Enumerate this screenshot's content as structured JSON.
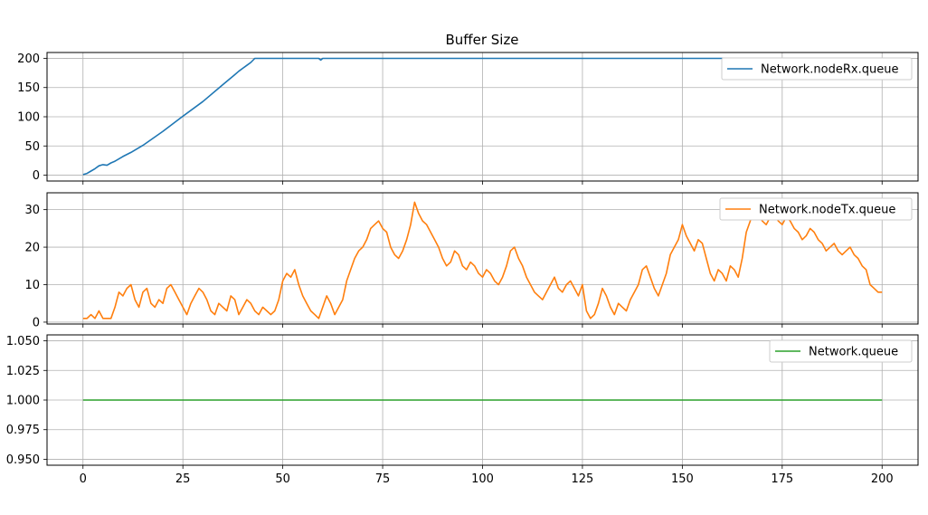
{
  "figure": {
    "title": "Buffer Size"
  },
  "chart_data": [
    {
      "type": "line",
      "title": "Buffer Size",
      "xlabel": "",
      "ylabel": "",
      "xlim": [
        -9,
        209
      ],
      "ylim": [
        -10,
        210
      ],
      "xticks": [
        0,
        25,
        50,
        75,
        100,
        125,
        150,
        175,
        200
      ],
      "xtick_labels_visible": false,
      "yticks": [
        0,
        50,
        100,
        150,
        200
      ],
      "ytick_labels": [
        "0",
        "50",
        "100",
        "150",
        "200"
      ],
      "grid": true,
      "legend_position": "upper-right",
      "series": [
        {
          "name": "Network.nodeRx.queue",
          "color": "#1f77b4",
          "x": [
            0,
            1,
            2,
            3,
            4,
            5,
            6,
            7,
            8,
            10,
            12,
            15,
            20,
            25,
            30,
            35,
            38,
            39,
            40,
            41,
            42,
            43,
            44,
            50,
            55,
            59,
            59.5,
            60,
            65,
            100,
            150,
            200
          ],
          "y": [
            1,
            3,
            7,
            11,
            16,
            18,
            17,
            21,
            24,
            32,
            39,
            51,
            75,
            101,
            126,
            155,
            172,
            178,
            183,
            188,
            193,
            200,
            200,
            200,
            200,
            200,
            197,
            200,
            200,
            200,
            200,
            200
          ]
        }
      ]
    },
    {
      "type": "line",
      "xlabel": "",
      "ylabel": "",
      "xlim": [
        -9,
        209
      ],
      "ylim": [
        -0.5,
        34.5
      ],
      "xticks": [
        0,
        25,
        50,
        75,
        100,
        125,
        150,
        175,
        200
      ],
      "xtick_labels_visible": false,
      "yticks": [
        0,
        10,
        20,
        30
      ],
      "ytick_labels": [
        "0",
        "10",
        "20",
        "30"
      ],
      "grid": true,
      "legend_position": "upper-right",
      "series": [
        {
          "name": "Network.nodeTx.queue",
          "color": "#ff7f0e",
          "x": [
            0,
            1,
            2,
            3,
            4,
            5,
            6,
            7,
            8,
            9,
            10,
            11,
            12,
            13,
            14,
            15,
            16,
            17,
            18,
            19,
            20,
            21,
            22,
            23,
            24,
            25,
            26,
            27,
            28,
            29,
            30,
            31,
            32,
            33,
            34,
            35,
            36,
            37,
            38,
            39,
            40,
            41,
            42,
            43,
            44,
            45,
            46,
            47,
            48,
            49,
            50,
            51,
            52,
            53,
            54,
            55,
            56,
            57,
            58,
            59,
            60,
            61,
            62,
            63,
            64,
            65,
            66,
            67,
            68,
            69,
            70,
            71,
            72,
            73,
            74,
            75,
            76,
            77,
            78,
            79,
            80,
            81,
            82,
            83,
            84,
            85,
            86,
            87,
            88,
            89,
            90,
            91,
            92,
            93,
            94,
            95,
            96,
            97,
            98,
            99,
            100,
            101,
            102,
            103,
            104,
            105,
            106,
            107,
            108,
            109,
            110,
            111,
            112,
            113,
            114,
            115,
            116,
            117,
            118,
            119,
            120,
            121,
            122,
            123,
            124,
            125,
            126,
            127,
            128,
            129,
            130,
            131,
            132,
            133,
            134,
            135,
            136,
            137,
            138,
            139,
            140,
            141,
            142,
            143,
            144,
            145,
            146,
            147,
            148,
            149,
            150,
            151,
            152,
            153,
            154,
            155,
            156,
            157,
            158,
            159,
            160,
            161,
            162,
            163,
            164,
            165,
            166,
            167,
            168,
            169,
            170,
            171,
            172,
            173,
            174,
            175,
            176,
            177,
            178,
            179,
            180,
            181,
            182,
            183,
            184,
            185,
            186,
            187,
            188,
            189,
            190,
            191,
            192,
            193,
            194,
            195,
            196,
            197,
            198,
            199,
            200
          ],
          "y": [
            1,
            1,
            2,
            1,
            3,
            1,
            1,
            1,
            4,
            8,
            7,
            9,
            10,
            6,
            4,
            8,
            9,
            5,
            4,
            6,
            5,
            9,
            10,
            8,
            6,
            4,
            2,
            5,
            7,
            9,
            8,
            6,
            3,
            2,
            5,
            4,
            3,
            7,
            6,
            2,
            4,
            6,
            5,
            3,
            2,
            4,
            3,
            2,
            3,
            6,
            11,
            13,
            12,
            14,
            10,
            7,
            5,
            3,
            2,
            1,
            4,
            7,
            5,
            2,
            4,
            6,
            11,
            14,
            17,
            19,
            20,
            22,
            25,
            26,
            27,
            25,
            24,
            20,
            18,
            17,
            19,
            22,
            26,
            32,
            29,
            27,
            26,
            24,
            22,
            20,
            17,
            15,
            16,
            19,
            18,
            15,
            14,
            16,
            15,
            13,
            12,
            14,
            13,
            11,
            10,
            12,
            15,
            19,
            20,
            17,
            15,
            12,
            10,
            8,
            7,
            6,
            8,
            10,
            12,
            9,
            8,
            10,
            11,
            9,
            7,
            10,
            3,
            1,
            2,
            5,
            9,
            7,
            4,
            2,
            5,
            4,
            3,
            6,
            8,
            10,
            14,
            15,
            12,
            9,
            7,
            10,
            13,
            18,
            20,
            22,
            26,
            23,
            21,
            19,
            22,
            21,
            17,
            13,
            11,
            14,
            13,
            11,
            15,
            14,
            12,
            17,
            24,
            27,
            30,
            29,
            27,
            26,
            28,
            29,
            27,
            26,
            28,
            27,
            25,
            24,
            22,
            23,
            25,
            24,
            22,
            21,
            19,
            20,
            21,
            19,
            18,
            19,
            20,
            18,
            17,
            15,
            14,
            10,
            9,
            8,
            8
          ]
        }
      ]
    },
    {
      "type": "line",
      "xlabel": "",
      "ylabel": "",
      "xlim": [
        -9,
        209
      ],
      "ylim": [
        0.945,
        1.055
      ],
      "xticks": [
        0,
        25,
        50,
        75,
        100,
        125,
        150,
        175,
        200
      ],
      "xtick_labels": [
        "0",
        "25",
        "50",
        "75",
        "100",
        "125",
        "150",
        "175",
        "200"
      ],
      "yticks": [
        0.95,
        0.975,
        1.0,
        1.025,
        1.05
      ],
      "ytick_labels": [
        "0.950",
        "0.975",
        "1.000",
        "1.025",
        "1.050"
      ],
      "grid": true,
      "legend_position": "upper-right",
      "series": [
        {
          "name": "Network.queue",
          "color": "#2ca02c",
          "x": [
            0,
            200
          ],
          "y": [
            1.0,
            1.0
          ]
        }
      ]
    }
  ]
}
